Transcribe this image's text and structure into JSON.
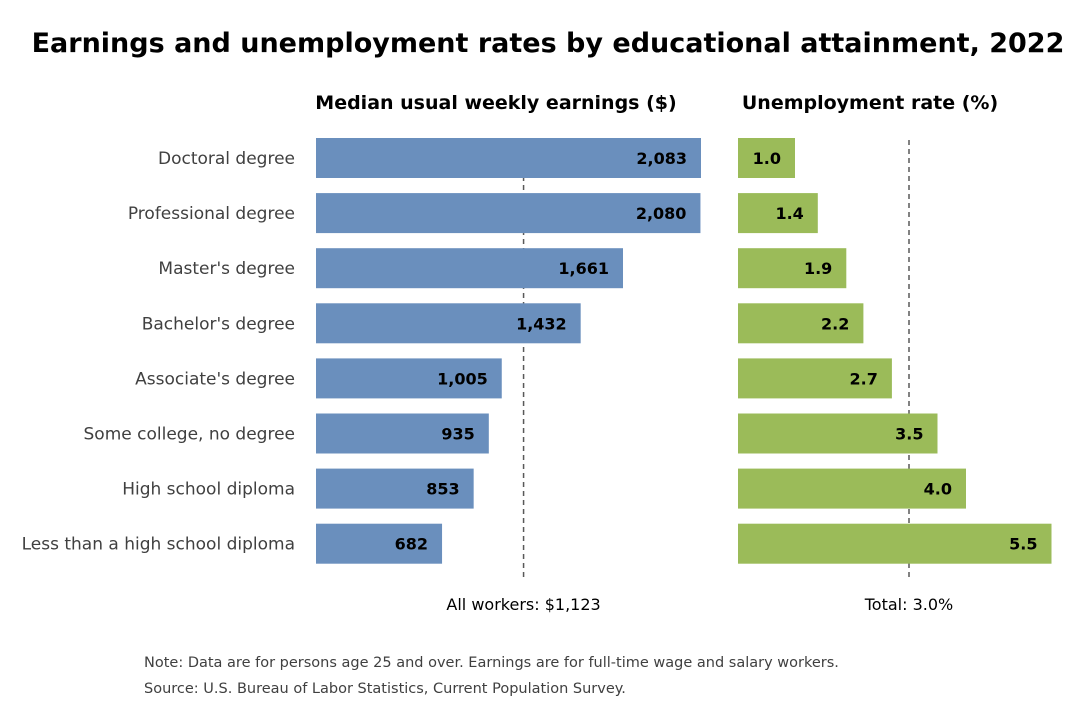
{
  "chart_data": {
    "type": "bar",
    "title": "Earnings and unemployment rates by educational attainment, 2022",
    "categories": [
      "Doctoral degree",
      "Professional degree",
      "Master's degree",
      "Bachelor's degree",
      "Associate's degree",
      "Some college, no degree",
      "High school diploma",
      "Less than a high school diploma"
    ],
    "panels": [
      {
        "title": "Median usual weekly earnings ($)",
        "series": [
          {
            "values": [
              2083,
              2080,
              1661,
              1432,
              1005,
              935,
              853,
              682
            ],
            "color": "#6a8fbd"
          }
        ],
        "value_labels": [
          "2,083",
          "2,080",
          "1,661",
          "1,432",
          "1,005",
          "935",
          "853",
          "682"
        ],
        "reference": {
          "value": 1123,
          "label": "All workers: $1,123"
        }
      },
      {
        "title": "Unemployment rate (%)",
        "series": [
          {
            "values": [
              1.0,
              1.4,
              1.9,
              2.2,
              2.7,
              3.5,
              4.0,
              5.5
            ],
            "color": "#9bbb59"
          }
        ],
        "value_labels": [
          "1.0",
          "1.4",
          "1.9",
          "2.2",
          "2.7",
          "3.5",
          "4.0",
          "5.5"
        ],
        "reference": {
          "value": 3.0,
          "label": "Total: 3.0%"
        }
      }
    ],
    "grid": false,
    "legend": "none"
  },
  "notes": {
    "note": "Note: Data are for persons age 25 and over. Earnings are for full-time wage and salary workers.",
    "source": "Source: U.S. Bureau of Labor Statistics, Current Population Survey."
  }
}
